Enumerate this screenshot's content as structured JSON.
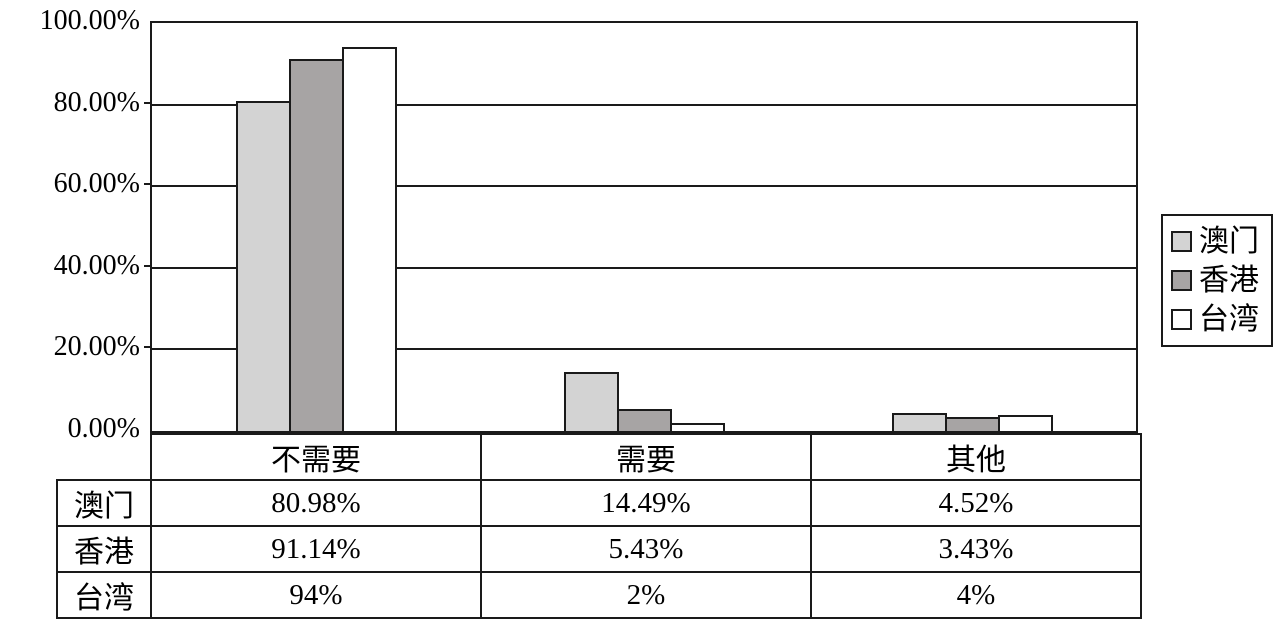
{
  "chart_data": {
    "type": "bar",
    "categories": [
      "不需要",
      "需要",
      "其他"
    ],
    "series": [
      {
        "name": "澳门",
        "values": [
          80.98,
          14.49,
          4.52
        ],
        "value_labels": [
          "80.98%",
          "14.49%",
          "4.52%"
        ],
        "color": "#d3d3d3"
      },
      {
        "name": "香港",
        "values": [
          91.14,
          5.43,
          3.43
        ],
        "value_labels": [
          "91.14%",
          "5.43%",
          "3.43%"
        ],
        "color": "#a7a4a4"
      },
      {
        "name": "台湾",
        "values": [
          94,
          2,
          4
        ],
        "value_labels": [
          "94%",
          "2%",
          "4%"
        ],
        "color": "#ffffff"
      }
    ],
    "y_axis": {
      "tick_labels": [
        "100.00%",
        "80.00%",
        "60.00%",
        "40.00%",
        "20.00%",
        "0.00%"
      ],
      "min": 0,
      "max": 100,
      "step": 20
    },
    "legend": {
      "position": "right",
      "entries": [
        "澳门",
        "香港",
        "台湾"
      ]
    },
    "grid": true,
    "data_table_shown": true,
    "colors": {
      "line": "#1a1a1a",
      "background": "#ffffff"
    }
  }
}
